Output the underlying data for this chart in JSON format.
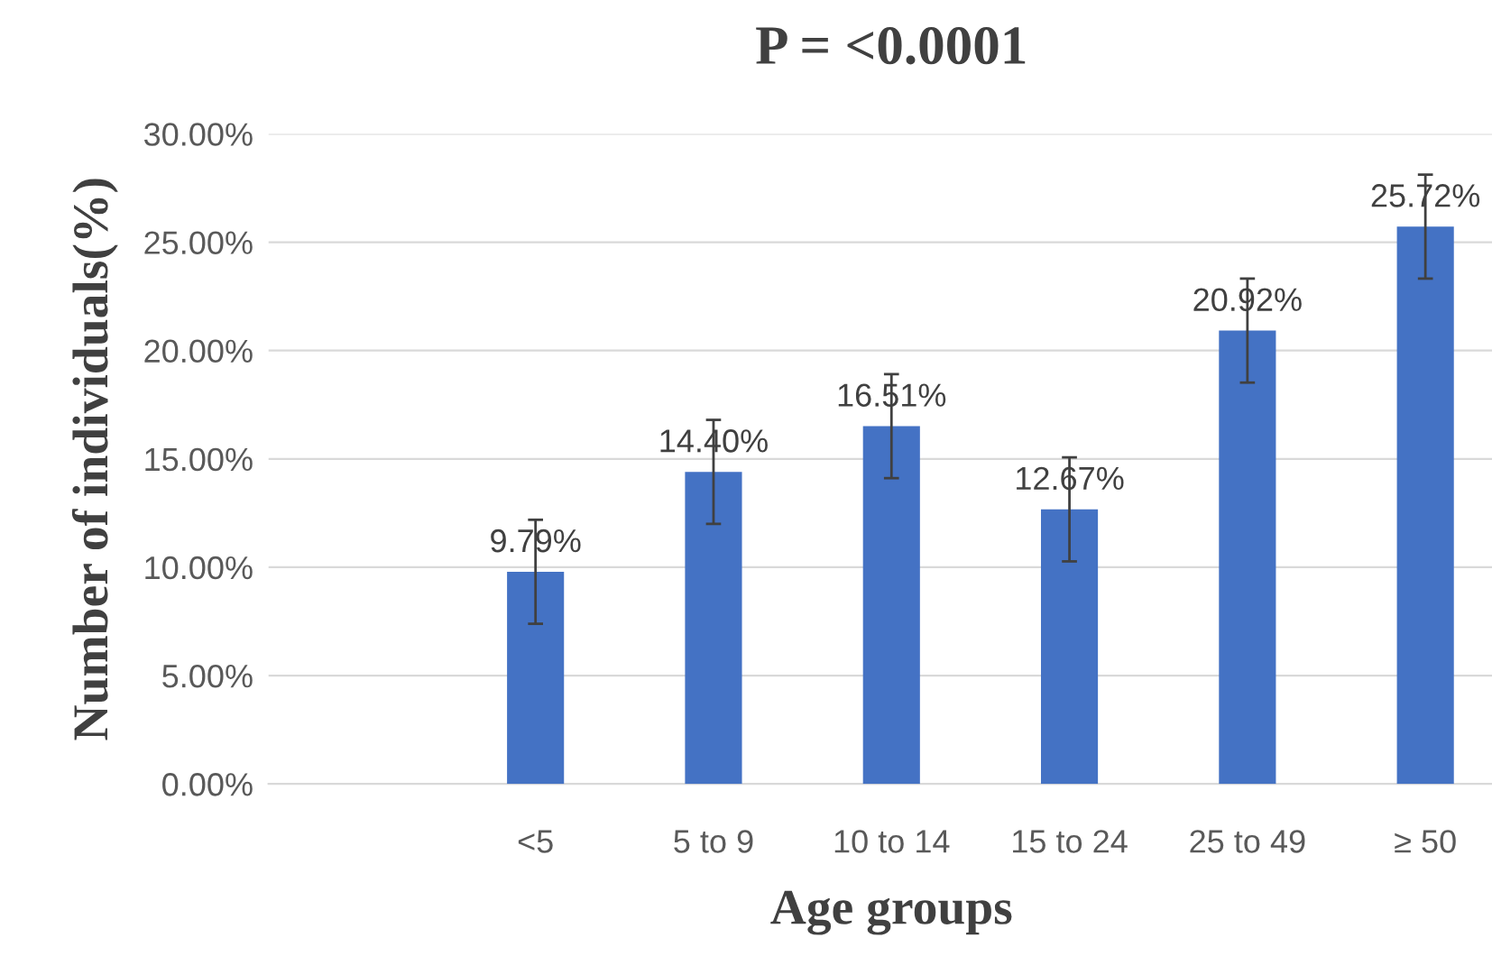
{
  "chart_data": {
    "type": "bar",
    "title": "P = <0.0001",
    "xlabel": "Age groups",
    "ylabel": "Number of individuals(%)",
    "categories": [
      null,
      "<5",
      "5 to 9",
      "10 to 14",
      "15 to 24",
      "25 to 49",
      "≥ 50"
    ],
    "values": [
      null,
      9.79,
      14.4,
      16.51,
      12.67,
      20.92,
      25.72
    ],
    "errors": [
      null,
      2.4,
      2.4,
      2.4,
      2.4,
      2.4,
      2.4
    ],
    "value_labels": [
      null,
      "9.79%",
      "14.40%",
      "16.51%",
      "12.67%",
      "20.92%",
      "25.72%"
    ],
    "color": "#4472c4",
    "ylim": [
      0,
      30
    ],
    "yticks": [
      {
        "value": 0,
        "label": "0.00%"
      },
      {
        "value": 5,
        "label": "5.00%"
      },
      {
        "value": 10,
        "label": "10.00%"
      },
      {
        "value": 15,
        "label": "15.00%"
      },
      {
        "value": 20,
        "label": "20.00%"
      },
      {
        "value": 25,
        "label": "25.00%"
      },
      {
        "value": 30,
        "label": "30.00%"
      }
    ],
    "grid": "y"
  }
}
